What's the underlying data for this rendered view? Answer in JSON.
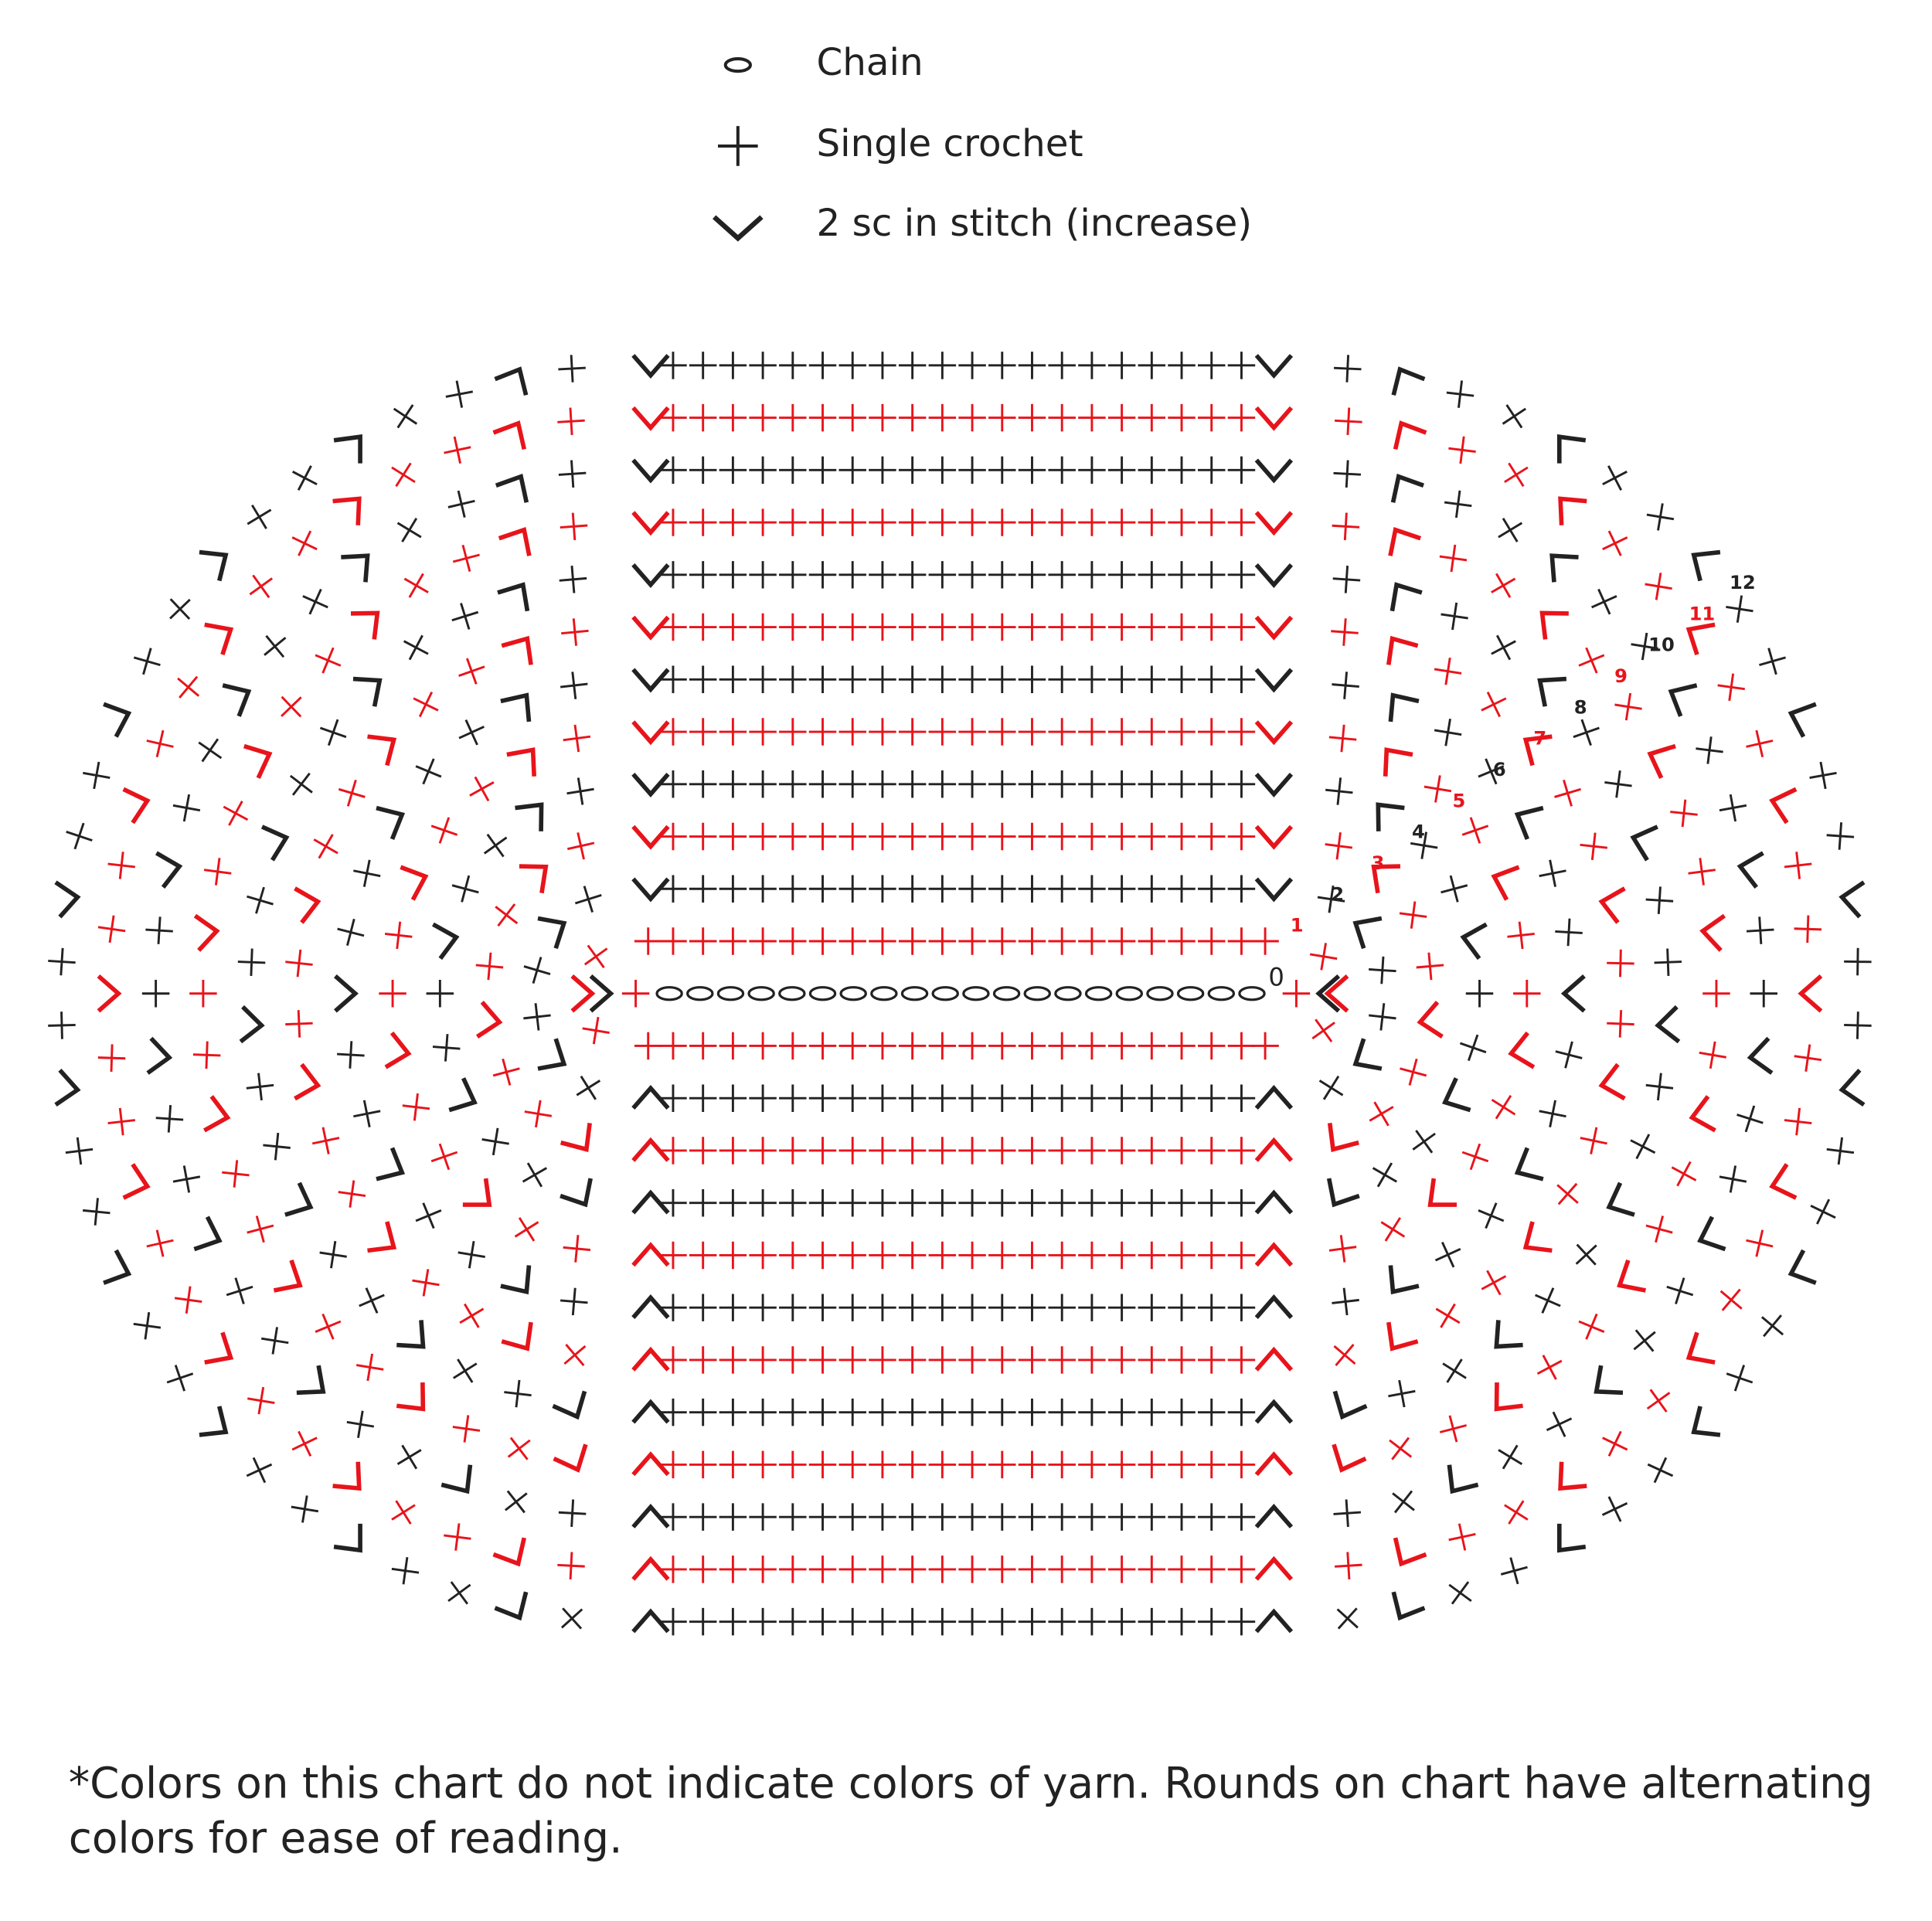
{
  "legend": [
    {
      "label": "Chain"
    },
    {
      "label": "Single crochet"
    },
    {
      "label": "2 sc in stitch (increase)"
    }
  ],
  "round_labels": [
    "0",
    "1",
    "2",
    "3",
    "4",
    "5",
    "6",
    "7",
    "8",
    "9",
    "10",
    "11",
    "12"
  ],
  "footnote": [
    "*Colors on this chart do not indicate colors of yarn. Rounds on chart have alternating",
    "colors for ease of reading."
  ]
}
